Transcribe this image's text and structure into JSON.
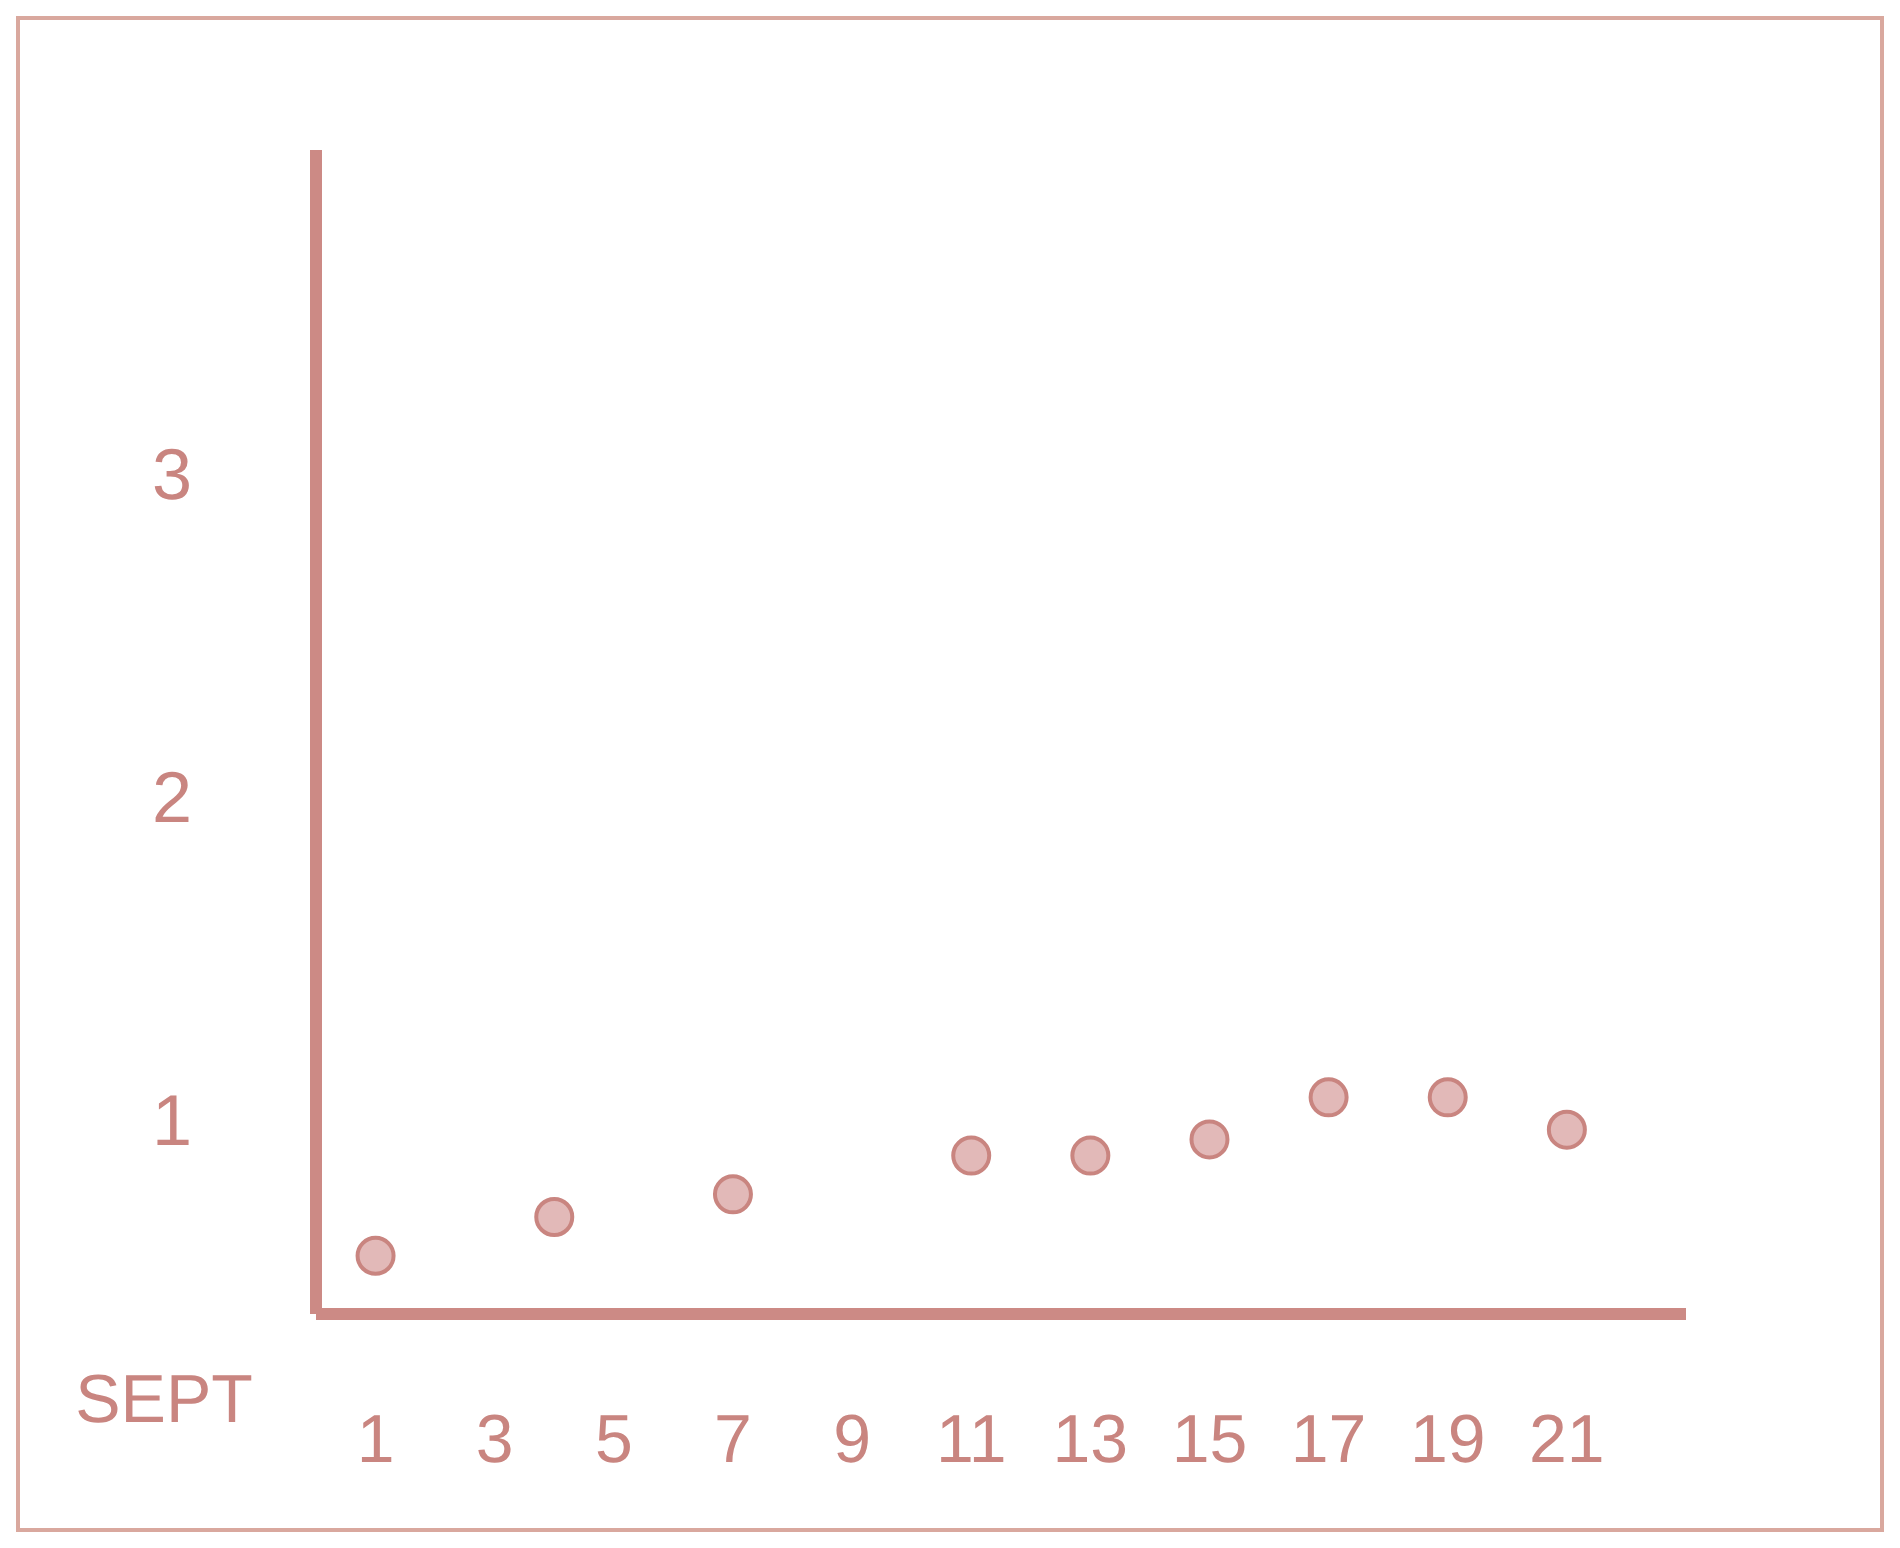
{
  "chart_data": {
    "type": "scatter",
    "xlabel": "SEPT",
    "x": [
      1,
      4,
      7,
      11,
      13,
      15,
      17,
      19,
      21
    ],
    "values": [
      0.58,
      0.7,
      0.77,
      0.89,
      0.89,
      0.94,
      1.07,
      1.07,
      0.97
    ],
    "color": "#e2b9b8",
    "xlim": [
      0,
      23
    ],
    "xticks": [
      1,
      3,
      5,
      7,
      9,
      11,
      13,
      15,
      17,
      19,
      21
    ],
    "ylim": [
      0.4,
      4
    ],
    "yticks": [
      1,
      2,
      3
    ],
    "grid": false,
    "marker": "circle"
  }
}
